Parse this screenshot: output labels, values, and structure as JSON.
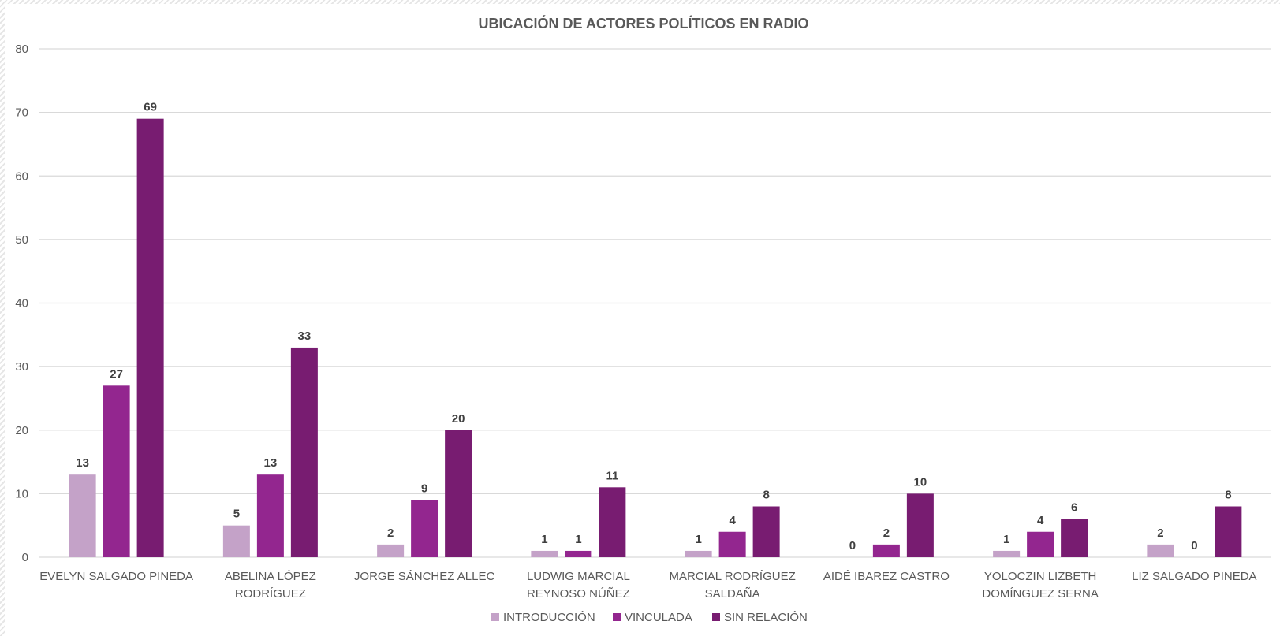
{
  "chart_data": {
    "type": "bar",
    "title": "UBICACIÓN DE ACTORES POLÍTICOS EN RADIO",
    "xlabel": "",
    "ylabel": "",
    "ylim": [
      0,
      80
    ],
    "yticks": [
      0,
      10,
      20,
      30,
      40,
      50,
      60,
      70,
      80
    ],
    "grid": true,
    "legend_position": "bottom",
    "categories": [
      [
        "EVELYN SALGADO PINEDA"
      ],
      [
        "ABELINA LÓPEZ",
        "RODRÍGUEZ"
      ],
      [
        "JORGE SÁNCHEZ ALLEC"
      ],
      [
        "LUDWIG MARCIAL",
        "REYNOSO NÚÑEZ"
      ],
      [
        "MARCIAL RODRÍGUEZ",
        "SALDAÑA"
      ],
      [
        "AIDÉ IBAREZ CASTRO"
      ],
      [
        "YOLOCZIN LIZBETH",
        "DOMÍNGUEZ SERNA"
      ],
      [
        "LIZ SALGADO PINEDA"
      ]
    ],
    "series": [
      {
        "name": "INTRODUCCIÓN",
        "color": "#c4a2c8",
        "values": [
          13,
          5,
          2,
          1,
          1,
          0,
          1,
          2
        ]
      },
      {
        "name": "VINCULADA",
        "color": "#93268f",
        "values": [
          27,
          13,
          9,
          1,
          4,
          2,
          4,
          0
        ]
      },
      {
        "name": "SIN RELACIÓN",
        "color": "#781c71",
        "values": [
          69,
          33,
          20,
          11,
          8,
          10,
          6,
          8
        ]
      }
    ]
  }
}
